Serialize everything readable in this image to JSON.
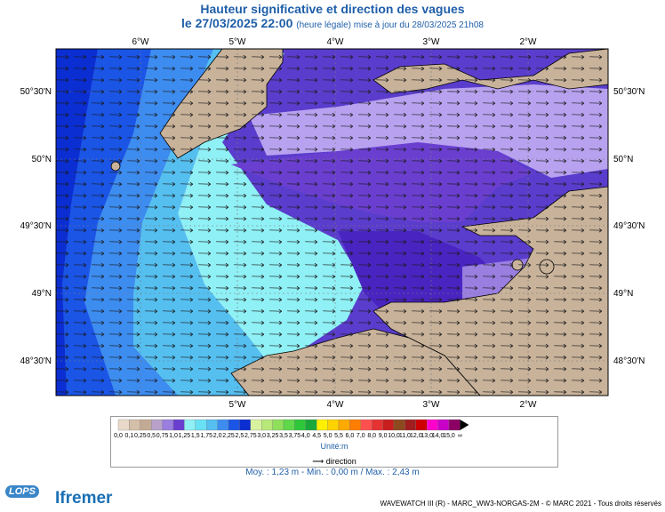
{
  "title": {
    "line1": "Hauteur significative et direction des vagues",
    "date": "le 27/03/2025 22:00",
    "note": "(heure légale) mise à jour du 28/03/2025 21h08"
  },
  "axes": {
    "lon_ticks": [
      "6°W",
      "5°W",
      "4°W",
      "3°W",
      "2°W"
    ],
    "lat_ticks": [
      "50°30'N",
      "50°N",
      "49°30'N",
      "49°N",
      "48°30'N"
    ]
  },
  "legend": {
    "levels": [
      "0,0",
      "0,1",
      "0,25",
      "0,5",
      "0,75",
      "1,0",
      "1,25",
      "1,5",
      "1,75",
      "2,0",
      "2,25",
      "2,5",
      "2,75",
      "3,0",
      "3,25",
      "3,5",
      "3,75",
      "4,0",
      "4,5",
      "5,0",
      "5,5",
      "6,0",
      "7,0",
      "8,0",
      "9,0",
      "10,0",
      "11,0",
      "12,0",
      "13,0",
      "14,0",
      "15,0",
      "∞"
    ],
    "colors": [
      "#e8d9c8",
      "#d4bfa9",
      "#c3aa94",
      "#b8a2c9",
      "#9a7ee0",
      "#6a3fd0",
      "#8ff0f5",
      "#6ae0f5",
      "#55bff0",
      "#3d8cf0",
      "#1a55e6",
      "#0a2ed1",
      "#d9f2a0",
      "#b8e87a",
      "#8ee05a",
      "#5fd84a",
      "#2fc83a",
      "#1aa83a",
      "#fff000",
      "#ffd200",
      "#ffaa00",
      "#ff7e00",
      "#ff5050",
      "#e63232",
      "#c81e1e",
      "#8c4a1e",
      "#a01e1e",
      "#cc0000",
      "#ff00cc",
      "#c800c8",
      "#8c0064"
    ],
    "unit": "Unité:m",
    "direction_label": "direction"
  },
  "stats": "Moy. : 1,23 m  -  Min. : 0,00 m / Max. : 2,43 m",
  "footer": "WAVEWATCH III (R) - MARC_WW3-NORGAS-2M - © MARC 2021 - Tous droits réservés",
  "logos": {
    "lops": "LOPS",
    "ifremer": "Ifremer"
  },
  "map_style": {
    "land": "#c8b29a",
    "wave_dir_deg": 80
  }
}
